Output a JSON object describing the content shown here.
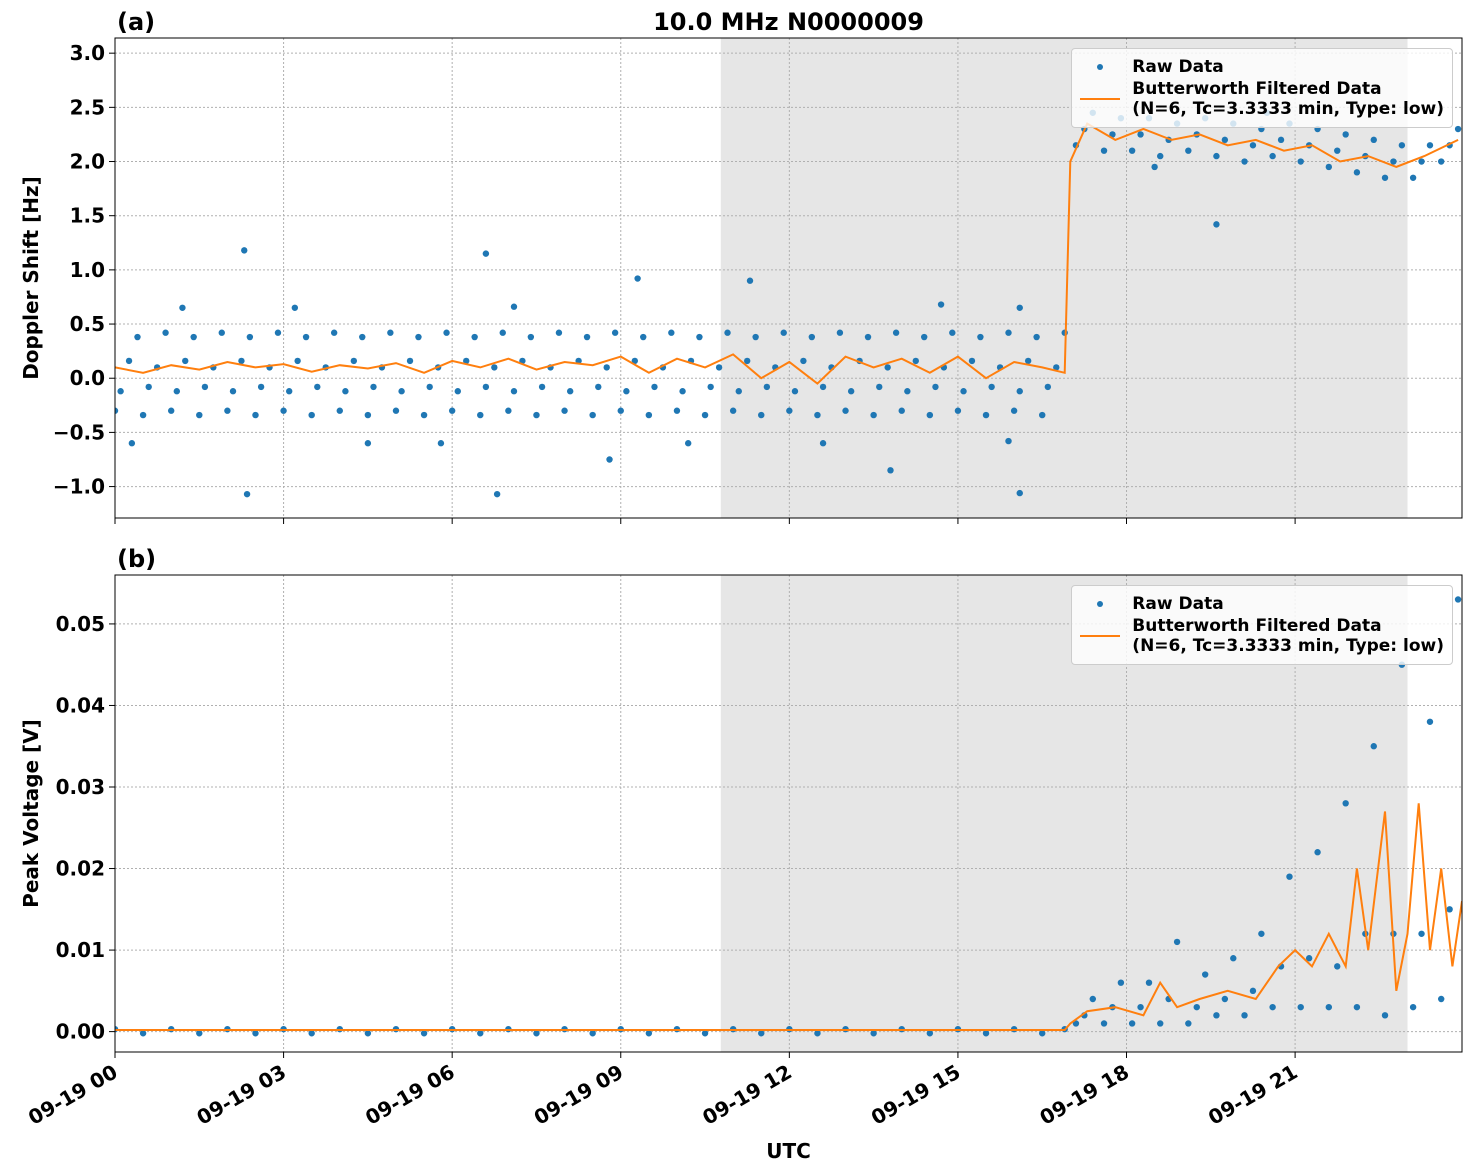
{
  "chart_data": [
    {
      "type": "scatter",
      "title": "10.0 MHz N0000009",
      "panel_label": "(a)",
      "ylabel": "Doppler Shift [Hz]",
      "xlim": [
        0,
        23.97
      ],
      "xticks": [
        0,
        3,
        6,
        9,
        12,
        15,
        18,
        21
      ],
      "xtick_labels": false,
      "ylim": [
        -1.29,
        3.14
      ],
      "yticks": [
        {
          "value": -1.0,
          "label": "−1.0"
        },
        {
          "value": -0.5,
          "label": "−0.5"
        },
        {
          "value": 0.0,
          "label": "0.0"
        },
        {
          "value": 0.5,
          "label": "0.5"
        },
        {
          "value": 1.0,
          "label": "1.0"
        },
        {
          "value": 1.5,
          "label": "1.5"
        },
        {
          "value": 2.0,
          "label": "2.0"
        },
        {
          "value": 2.5,
          "label": "2.5"
        },
        {
          "value": 3.0,
          "label": "3.0"
        }
      ],
      "grid": true,
      "shaded_span": [
        10.78,
        23.0
      ],
      "shade_color": "#e6e6e6",
      "legend": "upper right",
      "series": [
        {
          "name": "Raw Data",
          "type": "scatter",
          "color": "#1f77b4",
          "x": [
            0,
            0.1,
            0.25,
            0.4,
            0.5,
            0.6,
            0.75,
            0.9,
            1,
            1.1,
            1.25,
            1.4,
            1.5,
            1.6,
            1.75,
            1.9,
            2,
            2.1,
            2.25,
            2.4,
            2.5,
            2.6,
            2.75,
            2.9,
            3,
            3.1,
            3.25,
            3.4,
            3.5,
            3.6,
            3.75,
            3.9,
            4,
            4.1,
            4.25,
            4.4,
            4.5,
            4.6,
            4.75,
            4.9,
            5,
            5.1,
            5.25,
            5.4,
            5.5,
            5.6,
            5.75,
            5.9,
            6,
            6.1,
            6.25,
            6.4,
            6.5,
            6.6,
            6.75,
            6.9,
            7,
            7.1,
            7.25,
            7.4,
            7.5,
            7.6,
            7.75,
            7.9,
            8,
            8.1,
            8.25,
            8.4,
            8.5,
            8.6,
            8.75,
            8.9,
            9,
            9.1,
            9.25,
            9.4,
            9.5,
            9.6,
            9.75,
            9.9,
            10,
            10.1,
            10.25,
            10.4,
            10.5,
            10.6,
            10.75,
            10.9,
            11,
            11.1,
            11.25,
            11.4,
            11.5,
            11.6,
            11.75,
            11.9,
            12,
            12.1,
            12.25,
            12.4,
            12.5,
            12.6,
            12.75,
            12.9,
            13,
            13.1,
            13.25,
            13.4,
            13.5,
            13.6,
            13.75,
            13.9,
            14,
            14.1,
            14.25,
            14.4,
            14.5,
            14.6,
            14.75,
            14.9,
            15,
            15.1,
            15.25,
            15.4,
            15.5,
            15.6,
            15.75,
            15.9,
            16,
            16.1,
            16.25,
            16.4,
            16.5,
            16.6,
            16.75,
            16.9,
            1.2,
            2.3,
            2.35,
            4.5,
            5.8,
            6.6,
            6.8,
            8.8,
            9.3,
            11.3,
            12.6,
            13.8,
            16.1,
            16.1,
            0.3,
            3.2,
            7.1,
            10.2,
            14.7,
            15.9,
            17.1,
            17.25,
            17.4,
            17.6,
            17.75,
            17.9,
            18.1,
            18.25,
            18.4,
            18.6,
            18.75,
            18.9,
            19.1,
            19.25,
            19.4,
            19.6,
            19.75,
            19.9,
            20.1,
            20.25,
            20.4,
            20.6,
            20.75,
            20.9,
            21.1,
            21.25,
            21.4,
            21.6,
            21.75,
            21.9,
            22.1,
            22.25,
            22.4,
            22.6,
            22.75,
            22.9,
            23.1,
            23.25,
            23.4,
            23.6,
            23.75,
            23.9,
            19.6,
            18.5,
            20.5
          ],
          "values": [
            -0.3,
            -0.12,
            0.16,
            0.38,
            -0.34,
            -0.08,
            0.1,
            0.42,
            -0.3,
            -0.12,
            0.16,
            0.38,
            -0.34,
            -0.08,
            0.1,
            0.42,
            -0.3,
            -0.12,
            0.16,
            0.38,
            -0.34,
            -0.08,
            0.1,
            0.42,
            -0.3,
            -0.12,
            0.16,
            0.38,
            -0.34,
            -0.08,
            0.1,
            0.42,
            -0.3,
            -0.12,
            0.16,
            0.38,
            -0.34,
            -0.08,
            0.1,
            0.42,
            -0.3,
            -0.12,
            0.16,
            0.38,
            -0.34,
            -0.08,
            0.1,
            0.42,
            -0.3,
            -0.12,
            0.16,
            0.38,
            -0.34,
            -0.08,
            0.1,
            0.42,
            -0.3,
            -0.12,
            0.16,
            0.38,
            -0.34,
            -0.08,
            0.1,
            0.42,
            -0.3,
            -0.12,
            0.16,
            0.38,
            -0.34,
            -0.08,
            0.1,
            0.42,
            -0.3,
            -0.12,
            0.16,
            0.38,
            -0.34,
            -0.08,
            0.1,
            0.42,
            -0.3,
            -0.12,
            0.16,
            0.38,
            -0.34,
            -0.08,
            0.1,
            0.42,
            -0.3,
            -0.12,
            0.16,
            0.38,
            -0.34,
            -0.08,
            0.1,
            0.42,
            -0.3,
            -0.12,
            0.16,
            0.38,
            -0.34,
            -0.08,
            0.1,
            0.42,
            -0.3,
            -0.12,
            0.16,
            0.38,
            -0.34,
            -0.08,
            0.1,
            0.42,
            -0.3,
            -0.12,
            0.16,
            0.38,
            -0.34,
            -0.08,
            0.1,
            0.42,
            -0.3,
            -0.12,
            0.16,
            0.38,
            -0.34,
            -0.08,
            0.1,
            0.42,
            -0.3,
            -0.12,
            0.16,
            0.38,
            -0.34,
            -0.08,
            0.1,
            0.42,
            0.65,
            1.18,
            -1.07,
            -0.6,
            -0.6,
            1.15,
            -1.07,
            -0.75,
            0.92,
            0.9,
            -0.6,
            -0.85,
            -1.06,
            0.65,
            -0.6,
            0.65,
            0.66,
            -0.6,
            0.68,
            -0.58,
            2.15,
            2.3,
            2.45,
            2.1,
            2.25,
            2.4,
            2.1,
            2.25,
            2.4,
            2.05,
            2.2,
            2.35,
            2.1,
            2.25,
            2.4,
            2.05,
            2.2,
            2.35,
            2.0,
            2.15,
            2.3,
            2.05,
            2.2,
            2.35,
            2.0,
            2.15,
            2.3,
            1.95,
            2.1,
            2.25,
            1.9,
            2.05,
            2.2,
            1.85,
            2.0,
            2.15,
            1.85,
            2.0,
            2.15,
            2.0,
            2.15,
            2.3,
            1.42,
            1.95,
            2.45
          ]
        },
        {
          "name": "Butterworth Filtered Data\n(N=6, Tc=3.3333 min, Type: low)",
          "type": "line",
          "color": "#ff7f0e",
          "x": [
            0,
            0.5,
            1,
            1.5,
            2,
            2.5,
            3,
            3.5,
            4,
            4.5,
            5,
            5.5,
            6,
            6.5,
            7,
            7.5,
            8,
            8.5,
            9,
            9.5,
            10,
            10.5,
            11,
            11.5,
            12,
            12.5,
            13,
            13.5,
            14,
            14.5,
            15,
            15.5,
            16,
            16.5,
            16.9,
            17.0,
            17.3,
            17.8,
            18.3,
            18.8,
            19.3,
            19.8,
            20.3,
            20.8,
            21.3,
            21.8,
            22.3,
            22.8,
            23.3,
            23.9
          ],
          "values": [
            0.1,
            0.05,
            0.12,
            0.08,
            0.15,
            0.1,
            0.13,
            0.06,
            0.12,
            0.09,
            0.14,
            0.05,
            0.16,
            0.1,
            0.18,
            0.08,
            0.15,
            0.12,
            0.2,
            0.05,
            0.18,
            0.1,
            0.22,
            0.0,
            0.15,
            -0.05,
            0.2,
            0.1,
            0.18,
            0.05,
            0.2,
            0.0,
            0.15,
            0.1,
            0.05,
            2.0,
            2.35,
            2.2,
            2.3,
            2.2,
            2.25,
            2.15,
            2.2,
            2.1,
            2.15,
            2.0,
            2.05,
            1.95,
            2.05,
            2.2
          ]
        }
      ]
    },
    {
      "type": "scatter",
      "panel_label": "(b)",
      "ylabel": "Peak Voltage [V]",
      "xlabel": "UTC",
      "xlim": [
        0,
        23.97
      ],
      "xticks": [
        {
          "value": 0,
          "label": "09-19 00"
        },
        {
          "value": 3,
          "label": "09-19 03"
        },
        {
          "value": 6,
          "label": "09-19 06"
        },
        {
          "value": 9,
          "label": "09-19 09"
        },
        {
          "value": 12,
          "label": "09-19 12"
        },
        {
          "value": 15,
          "label": "09-19 15"
        },
        {
          "value": 18,
          "label": "09-19 18"
        },
        {
          "value": 21,
          "label": "09-19 21"
        }
      ],
      "ylim": [
        -0.0025,
        0.056
      ],
      "yticks": [
        {
          "value": 0,
          "label": "0.00"
        },
        {
          "value": 0.01,
          "label": "0.01"
        },
        {
          "value": 0.02,
          "label": "0.02"
        },
        {
          "value": 0.03,
          "label": "0.03"
        },
        {
          "value": 0.04,
          "label": "0.04"
        },
        {
          "value": 0.05,
          "label": "0.05"
        }
      ],
      "grid": true,
      "shaded_span": [
        10.78,
        23.0
      ],
      "shade_color": "#e6e6e6",
      "legend": "upper right",
      "series": [
        {
          "name": "Raw Data",
          "type": "scatter",
          "color": "#1f77b4",
          "x": [
            0,
            0.5,
            1,
            1.5,
            2,
            2.5,
            3,
            3.5,
            4,
            4.5,
            5,
            5.5,
            6,
            6.5,
            7,
            7.5,
            8,
            8.5,
            9,
            9.5,
            10,
            10.5,
            11,
            11.5,
            12,
            12.5,
            13,
            13.5,
            14,
            14.5,
            15,
            15.5,
            16,
            16.5,
            16.9,
            17.1,
            17.25,
            17.4,
            17.6,
            17.75,
            17.9,
            18.1,
            18.25,
            18.4,
            18.6,
            18.75,
            18.9,
            19.1,
            19.25,
            19.4,
            19.6,
            19.75,
            19.9,
            20.1,
            20.25,
            20.4,
            20.6,
            20.75,
            20.9,
            21.1,
            21.25,
            21.4,
            21.6,
            21.75,
            21.9,
            22.1,
            22.25,
            22.4,
            22.6,
            22.75,
            22.9,
            23.1,
            23.25,
            23.4,
            23.6,
            23.75,
            23.9
          ],
          "values": [
            0.0003,
            -0.0002,
            0.0003,
            -0.0002,
            0.0003,
            -0.0002,
            0.0003,
            -0.0002,
            0.0003,
            -0.0002,
            0.0003,
            -0.0002,
            0.0003,
            -0.0002,
            0.0003,
            -0.0002,
            0.0003,
            -0.0002,
            0.0003,
            -0.0002,
            0.0003,
            -0.0002,
            0.0003,
            -0.0002,
            0.0003,
            -0.0002,
            0.0003,
            -0.0002,
            0.0003,
            -0.0002,
            0.0003,
            -0.0002,
            0.0003,
            -0.0002,
            0.0003,
            0.001,
            0.002,
            0.004,
            0.001,
            0.003,
            0.006,
            0.001,
            0.003,
            0.006,
            0.001,
            0.004,
            0.011,
            0.001,
            0.003,
            0.007,
            0.002,
            0.004,
            0.009,
            0.002,
            0.005,
            0.012,
            0.003,
            0.008,
            0.019,
            0.003,
            0.009,
            0.022,
            0.003,
            0.008,
            0.028,
            0.003,
            0.012,
            0.035,
            0.002,
            0.012,
            0.045,
            0.003,
            0.012,
            0.038,
            0.004,
            0.015,
            0.053
          ]
        },
        {
          "name": "Butterworth Filtered Data\n(N=6, Tc=3.3333 min, Type: low)",
          "type": "line",
          "color": "#ff7f0e",
          "x": [
            0,
            16.9,
            17.0,
            17.3,
            17.8,
            18.3,
            18.6,
            18.9,
            19.3,
            19.8,
            20.3,
            20.7,
            21.0,
            21.3,
            21.6,
            21.9,
            22.1,
            22.3,
            22.6,
            22.8,
            23.0,
            23.2,
            23.4,
            23.6,
            23.8,
            23.97
          ],
          "values": [
            0.0002,
            0.0002,
            0.001,
            0.0025,
            0.003,
            0.002,
            0.006,
            0.003,
            0.004,
            0.005,
            0.004,
            0.008,
            0.01,
            0.008,
            0.012,
            0.008,
            0.02,
            0.01,
            0.027,
            0.005,
            0.012,
            0.028,
            0.01,
            0.02,
            0.008,
            0.016
          ]
        }
      ]
    }
  ]
}
